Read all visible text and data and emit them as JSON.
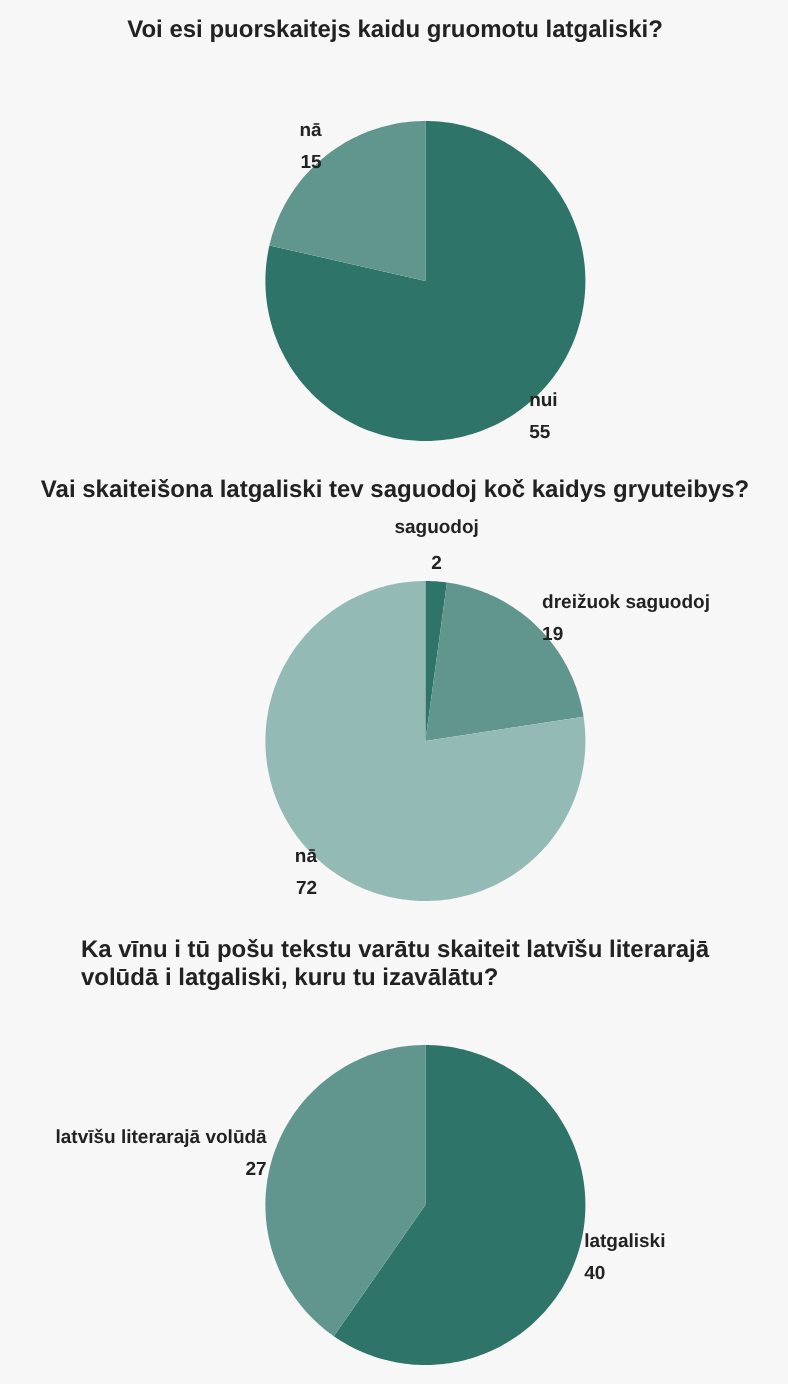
{
  "chart_data": [
    {
      "type": "pie",
      "title": "Voi esi puorskaitejs kaidu gruomotu latgaliski?",
      "categories": [
        "nui",
        "nā"
      ],
      "values": [
        55,
        15
      ],
      "colors": [
        "#2e7468",
        "#61968e"
      ],
      "data_labels": true
    },
    {
      "type": "pie",
      "title": "Vai skaiteišona latgaliski tev saguodoj koč kaidys gryuteibys?",
      "categories": [
        "saguodoj",
        "dreižuok saguodoj",
        "nā"
      ],
      "values": [
        2,
        19,
        72
      ],
      "colors": [
        "#2e7468",
        "#61968e",
        "#93bab5"
      ],
      "data_labels": true
    },
    {
      "type": "pie",
      "title": "Ka vīnu i tū pošu tekstu varātu skaiteit latvīšu literarajā volūdā i latgaliski, kuru tu izavālātu?",
      "categories": [
        "latgaliski",
        "latvīšu literarajā volūdā"
      ],
      "values": [
        40,
        27
      ],
      "colors": [
        "#2e7468",
        "#61968e"
      ],
      "data_labels": true
    }
  ]
}
